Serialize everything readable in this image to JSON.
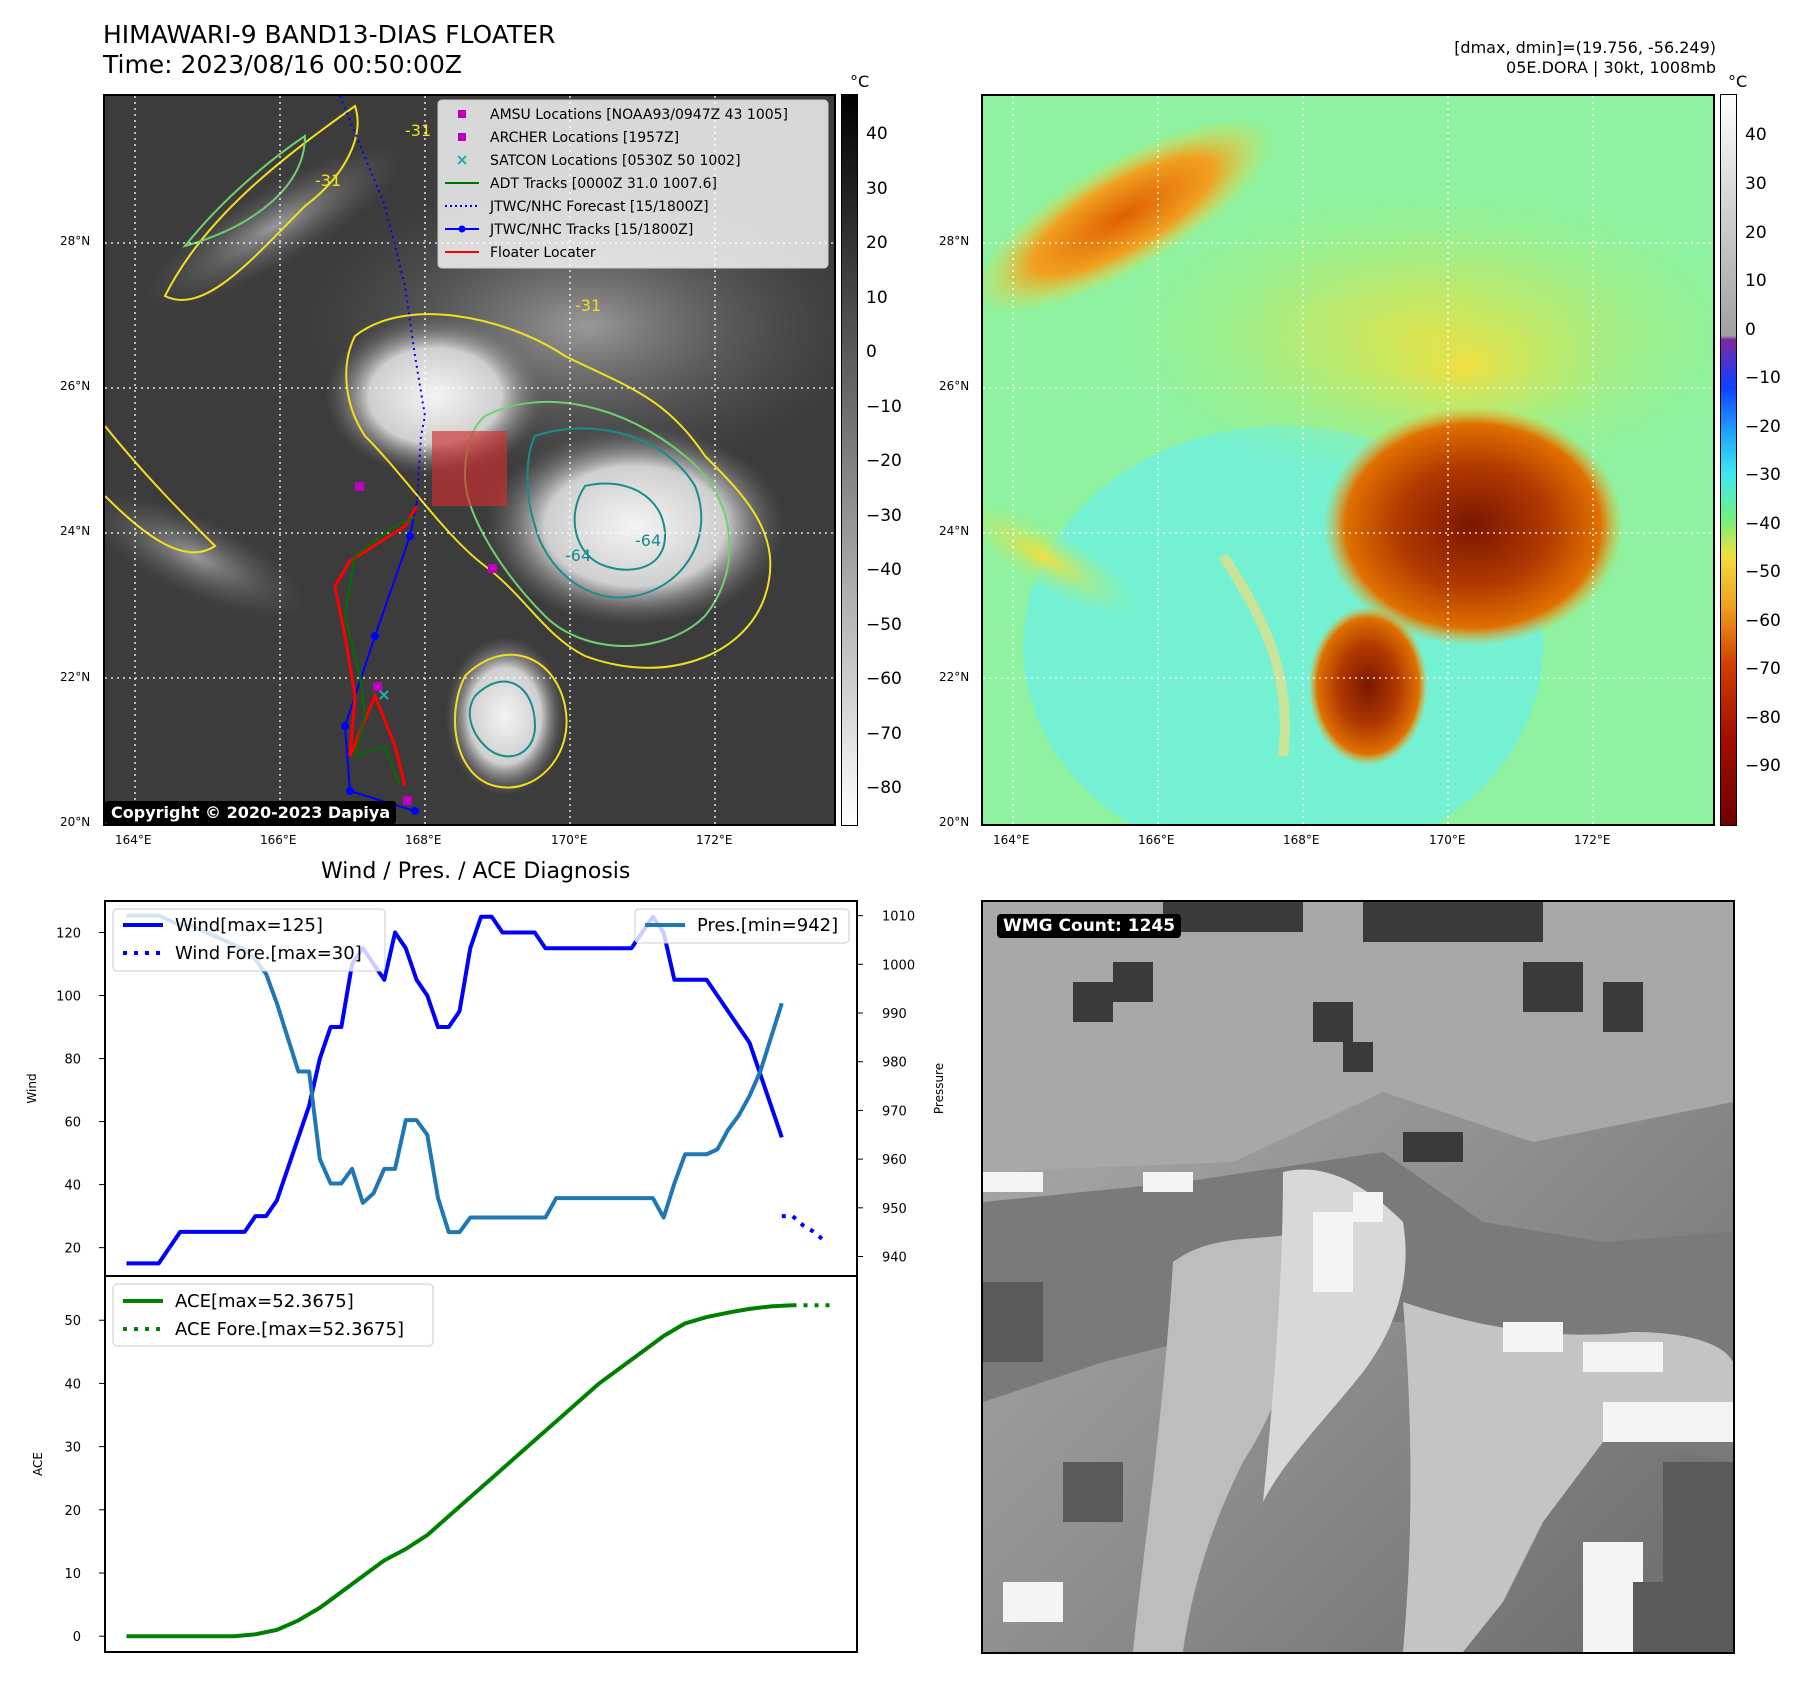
{
  "header": {
    "title_line1": "HIMAWARI-9 BAND13-DIAS FLOATER",
    "title_line2": "Time: 2023/08/16 00:50:00Z",
    "info_line1": "[dmax, dmin]=(19.756, -56.249)",
    "info_line2": "05E.DORA | 30kt, 1008mb"
  },
  "map_ir": {
    "copyright": "Copyright © 2020-2023 Dapiya",
    "colorbar_unit": "°C",
    "colorbar_ticks": [
      "40",
      "30",
      "20",
      "10",
      "0",
      "−10",
      "−20",
      "−30",
      "−40",
      "−50",
      "−60",
      "−70",
      "−80"
    ],
    "lat_labels": [
      "28°N",
      "26°N",
      "24°N",
      "22°N",
      "20°N"
    ],
    "lon_labels": [
      "164°E",
      "166°E",
      "168°E",
      "170°E",
      "172°E"
    ],
    "contour_labels": [
      "-31",
      "-31",
      "-31",
      "-64",
      "-64"
    ],
    "legend": [
      {
        "label": "AMSU Locations [NOAA93/0947Z 43 1005]",
        "marker": "square",
        "color": "#c000c0"
      },
      {
        "label": "ARCHER Locations [1957Z]",
        "marker": "square",
        "color": "#c000c0"
      },
      {
        "label": "SATCON Locations [0530Z 50 1002]",
        "marker": "x",
        "color": "#20b0b0"
      },
      {
        "label": "ADT Tracks [0000Z 31.0 1007.6]",
        "marker": "line",
        "color": "#007000"
      },
      {
        "label": "JTWC/NHC Forecast [15/1800Z]",
        "marker": "dotted",
        "color": "#0000ff"
      },
      {
        "label": "JTWC/NHC Tracks [15/1800Z]",
        "marker": "line-dot",
        "color": "#0000ff"
      },
      {
        "label": "Floater Locater",
        "marker": "line",
        "color": "#ff0000"
      }
    ]
  },
  "map_color": {
    "colorbar_unit": "°C",
    "colorbar_ticks": [
      "40",
      "30",
      "20",
      "10",
      "0",
      "−10",
      "−20",
      "−30",
      "−40",
      "−50",
      "−60",
      "−70",
      "−80",
      "−90"
    ],
    "lat_labels": [
      "28°N",
      "26°N",
      "24°N",
      "22°N",
      "20°N"
    ],
    "lon_labels": [
      "164°E",
      "166°E",
      "168°E",
      "170°E",
      "172°E"
    ]
  },
  "wmg": {
    "label": "WMG Count: 1245"
  },
  "colors": {
    "wind": "#0000ff",
    "pressure": "#1f77b4",
    "ace": "#008000",
    "track_red": "#ff0000",
    "contour_yellow": "#f0e020",
    "contour_green": "#70d070",
    "contour_teal": "#1a8c8c"
  },
  "chart_data": [
    {
      "type": "line",
      "title": "Wind / Pres. / ACE Diagnosis",
      "ylabel": "Wind",
      "ylabel_right": "Pressure",
      "ylim": [
        11,
        130
      ],
      "ylim_right": [
        936,
        1013
      ],
      "yticks": [
        20,
        40,
        60,
        80,
        100,
        120
      ],
      "yticks_right": [
        940,
        950,
        960,
        970,
        980,
        990,
        1000,
        1010
      ],
      "series": [
        {
          "name": "Wind[max=125]",
          "axis": "left",
          "style": "solid",
          "x": [
            0,
            1,
            2,
            3,
            4,
            5,
            6,
            7,
            8,
            9,
            10,
            11,
            12,
            13,
            14,
            15,
            16,
            17,
            18,
            19,
            20,
            21,
            22,
            23,
            24,
            25,
            26,
            27,
            28,
            29,
            30,
            31,
            32,
            33,
            34,
            35,
            36,
            37,
            38,
            39,
            40,
            41,
            42,
            43,
            44,
            45,
            46,
            47,
            48,
            49,
            50,
            51,
            52,
            53,
            54,
            55,
            56,
            57,
            58,
            59,
            60,
            61
          ],
          "values": [
            15,
            15,
            15,
            15,
            20,
            25,
            25,
            25,
            25,
            25,
            25,
            25,
            30,
            30,
            35,
            45,
            55,
            65,
            80,
            90,
            90,
            110,
            115,
            110,
            105,
            120,
            115,
            105,
            100,
            90,
            90,
            95,
            115,
            125,
            125,
            120,
            120,
            120,
            120,
            115,
            115,
            115,
            115,
            115,
            115,
            115,
            115,
            115,
            120,
            125,
            120,
            105,
            105,
            105,
            105,
            100,
            95,
            90,
            85,
            75,
            65,
            55
          ]
        },
        {
          "name": "Wind Fore.[max=30]",
          "axis": "left",
          "style": "dotted",
          "x": [
            61,
            62,
            63,
            64,
            65
          ],
          "values": [
            30,
            30,
            27,
            25,
            22
          ]
        },
        {
          "name": "Pres.[min=942]",
          "axis": "right",
          "style": "solid",
          "x": [
            0,
            1,
            2,
            3,
            4,
            5,
            6,
            7,
            8,
            9,
            10,
            11,
            12,
            13,
            14,
            15,
            16,
            17,
            18,
            19,
            20,
            21,
            22,
            23,
            24,
            25,
            26,
            27,
            28,
            29,
            30,
            31,
            32,
            33,
            34,
            35,
            36,
            37,
            38,
            39,
            40,
            41,
            42,
            43,
            44,
            45,
            46,
            47,
            48,
            49,
            50,
            51,
            52,
            53,
            54,
            55,
            56,
            57,
            58,
            59,
            60,
            61
          ],
          "values": [
            1010,
            1010,
            1010,
            1010,
            1009,
            1008,
            1008,
            1007,
            1006,
            1005,
            1004,
            1003,
            1001,
            998,
            992,
            985,
            978,
            978,
            960,
            955,
            955,
            958,
            951,
            953,
            958,
            958,
            968,
            968,
            965,
            952,
            945,
            945,
            948,
            948,
            948,
            948,
            948,
            948,
            948,
            948,
            952,
            952,
            952,
            952,
            952,
            952,
            952,
            952,
            952,
            952,
            948,
            955,
            961,
            961,
            961,
            962,
            966,
            969,
            973,
            978,
            985,
            992
          ]
        }
      ]
    },
    {
      "type": "line",
      "ylabel": "ACE",
      "ylim": [
        -2.5,
        57
      ],
      "yticks": [
        0,
        10,
        20,
        30,
        40,
        50
      ],
      "series": [
        {
          "name": "ACE[max=52.3675]",
          "style": "solid",
          "x": [
            0,
            4,
            8,
            10,
            12,
            14,
            16,
            18,
            20,
            22,
            24,
            26,
            28,
            30,
            32,
            34,
            36,
            38,
            40,
            42,
            44,
            46,
            48,
            50,
            52,
            54,
            56,
            58,
            60,
            62
          ],
          "values": [
            0,
            0,
            0,
            0,
            0.3,
            1,
            2.5,
            4.5,
            7,
            9.5,
            12,
            13.8,
            16,
            19,
            22,
            25,
            28,
            31,
            34,
            37,
            40,
            42.5,
            45,
            47.5,
            49.5,
            50.5,
            51.2,
            51.8,
            52.2,
            52.3675
          ]
        },
        {
          "name": "ACE Fore.[max=52.3675]",
          "style": "dotted",
          "x": [
            62,
            66
          ],
          "values": [
            52.3675,
            52.3675
          ]
        }
      ]
    }
  ]
}
